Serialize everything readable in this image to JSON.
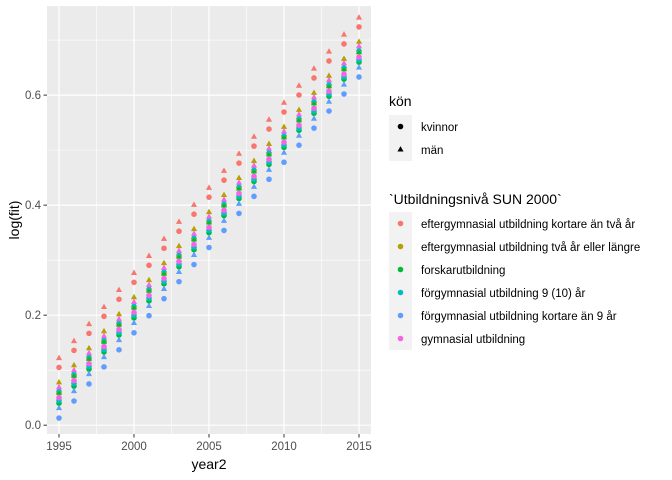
{
  "chart_data": {
    "type": "scatter",
    "xlabel": "year2",
    "ylabel": "log(fit)",
    "xlim": [
      1994.2,
      2015.8
    ],
    "ylim": [
      -0.016,
      0.762
    ],
    "x_ticks": [
      1995,
      2000,
      2005,
      2010,
      2015
    ],
    "y_ticks": [
      0.0,
      0.2,
      0.4,
      0.6
    ],
    "y_tick_labels": [
      "0.0",
      "0.2",
      "0.4",
      "0.6"
    ],
    "grid": true,
    "legend_position": "right",
    "x": [
      1995,
      1996,
      1997,
      1998,
      1999,
      2000,
      2001,
      2002,
      2003,
      2004,
      2005,
      2006,
      2007,
      2008,
      2009,
      2010,
      2011,
      2012,
      2013,
      2014,
      2015
    ],
    "shape_legend": {
      "title": "kön",
      "entries": [
        {
          "label": "kvinnor",
          "shape": "circle"
        },
        {
          "label": "män",
          "shape": "triangle"
        }
      ]
    },
    "color_legend": {
      "title": "`Utbildningsnivå SUN 2000`",
      "entries": [
        {
          "label": "eftergymnasial utbildning kortare än två år",
          "color": "#F8766D"
        },
        {
          "label": "eftergymnasial utbildning två år eller längre",
          "color": "#B79F00"
        },
        {
          "label": "forskarutbildning",
          "color": "#00BA38"
        },
        {
          "label": "förgymnasial utbildning 9 (10) år",
          "color": "#00BFC4"
        },
        {
          "label": "förgymnasial utbildning kortare än 9 år",
          "color": "#619CFF"
        },
        {
          "label": "gymnasial utbildning",
          "color": "#F564E3"
        }
      ]
    },
    "series": [
      {
        "color": "#F8766D",
        "shape": "circle",
        "start": 0.105,
        "end": 0.724
      },
      {
        "color": "#F8766D",
        "shape": "triangle",
        "start": 0.122,
        "end": 0.741
      },
      {
        "color": "#B79F00",
        "shape": "circle",
        "start": 0.059,
        "end": 0.679
      },
      {
        "color": "#B79F00",
        "shape": "triangle",
        "start": 0.078,
        "end": 0.697
      },
      {
        "color": "#00BA38",
        "shape": "circle",
        "start": 0.04,
        "end": 0.66
      },
      {
        "color": "#00BA38",
        "shape": "triangle",
        "start": 0.059,
        "end": 0.678
      },
      {
        "color": "#00BFC4",
        "shape": "circle",
        "start": 0.045,
        "end": 0.664
      },
      {
        "color": "#00BFC4",
        "shape": "triangle",
        "start": 0.065,
        "end": 0.684
      },
      {
        "color": "#619CFF",
        "shape": "circle",
        "start": 0.013,
        "end": 0.633
      },
      {
        "color": "#619CFF",
        "shape": "triangle",
        "start": 0.031,
        "end": 0.65
      },
      {
        "color": "#F564E3",
        "shape": "circle",
        "start": 0.05,
        "end": 0.669
      },
      {
        "color": "#F564E3",
        "shape": "triangle",
        "start": 0.069,
        "end": 0.689
      }
    ]
  }
}
